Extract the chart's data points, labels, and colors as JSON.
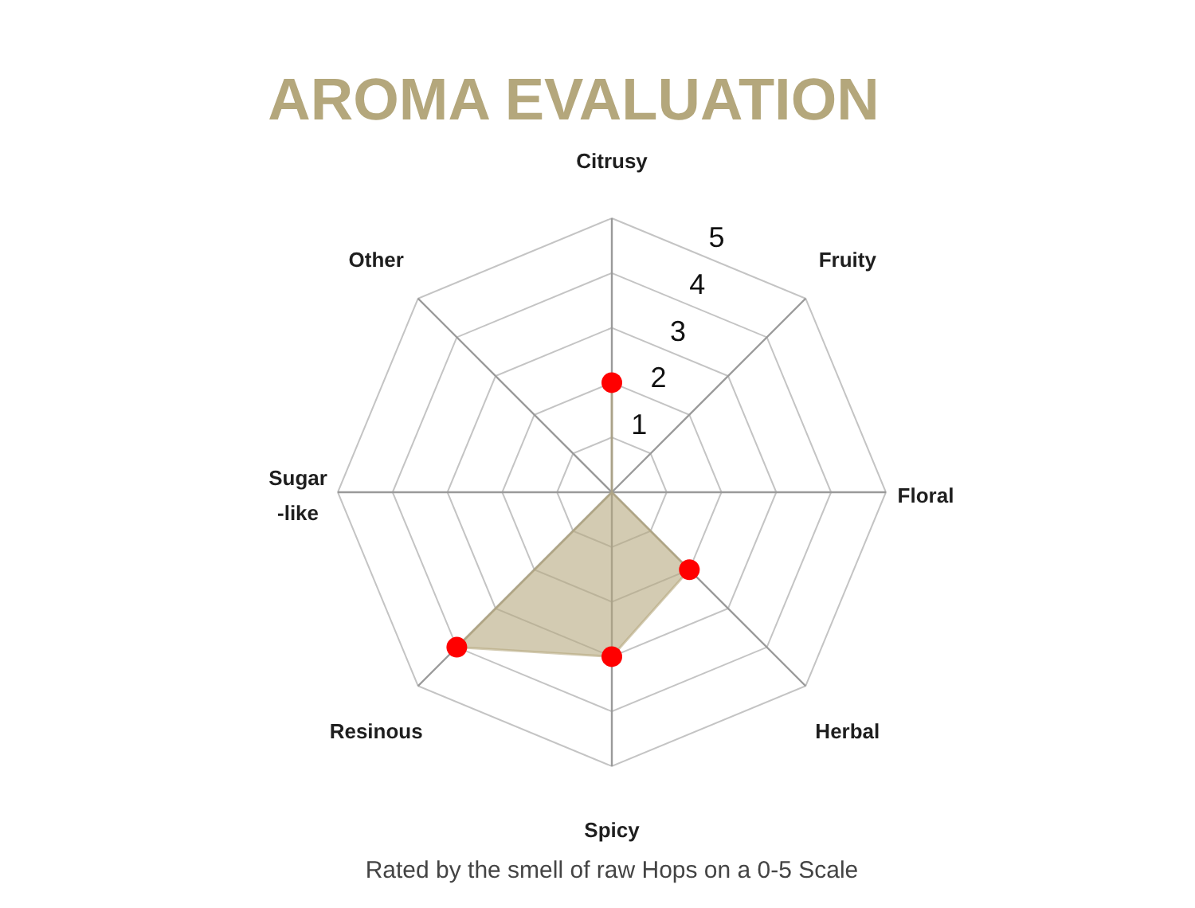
{
  "chart_data": {
    "type": "radar",
    "title": "AROMA EVALUATION",
    "categories": [
      "Citrusy",
      "Fruity",
      "Floral",
      "Herbal",
      "Spicy",
      "Resinous",
      "Sugar\n-like",
      "Other"
    ],
    "series": [
      {
        "color": "#d3cbb2",
        "colors": [
          "#ff0000",
          null,
          null,
          "#ff0000",
          "#ff0000",
          "#ff0000",
          null,
          null
        ],
        "values": [
          2,
          0,
          0,
          2,
          3,
          4,
          0,
          0
        ]
      }
    ],
    "ylim": [
      0,
      5
    ],
    "yticks": [
      1,
      2,
      3,
      4,
      5
    ],
    "grid": true,
    "marker": "circle",
    "annotations": [
      "Rated by the smell of raw Hops on a 0-5 Scale"
    ]
  }
}
